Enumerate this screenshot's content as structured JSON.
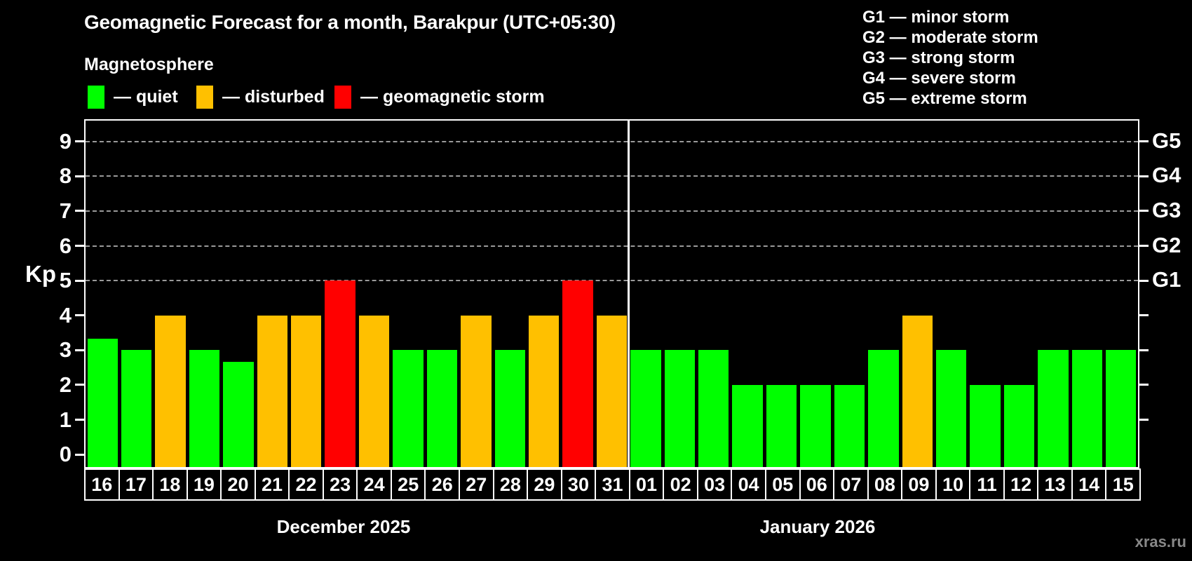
{
  "title": "Geomagnetic Forecast for a month, Barakpur (UTC+05:30)",
  "subtitle": "Magnetosphere",
  "watermark": "xras.ru",
  "colors": {
    "quiet": "#00ff00",
    "disturbed": "#ffc000",
    "storm": "#ff0000",
    "axis": "#ffffff",
    "grid": "#9a9a9a",
    "watermark": "#888888"
  },
  "legend": {
    "items": [
      {
        "label": "— quiet",
        "color": "quiet"
      },
      {
        "label": "— disturbed",
        "color": "disturbed"
      },
      {
        "label": "— geomagnetic storm",
        "color": "storm"
      }
    ]
  },
  "g_legend": [
    "G1 — minor storm",
    "G2 — moderate storm",
    "G3 — strong storm",
    "G4 — severe storm",
    "G5 — extreme storm"
  ],
  "chart_data": {
    "type": "bar",
    "ylabel": "Kp",
    "ylim": [
      0,
      9
    ],
    "yticks": [
      0,
      1,
      2,
      3,
      4,
      5,
      6,
      7,
      8,
      9
    ],
    "grid_levels": [
      5,
      6,
      7,
      8,
      9
    ],
    "right_axis": [
      {
        "kp": 5,
        "label": "G1"
      },
      {
        "kp": 6,
        "label": "G2"
      },
      {
        "kp": 7,
        "label": "G3"
      },
      {
        "kp": 8,
        "label": "G4"
      },
      {
        "kp": 9,
        "label": "G5"
      }
    ],
    "legend_position": "top",
    "grid": "dashed, levels 5-9 only",
    "months": [
      {
        "label": "December 2025",
        "days": [
          {
            "day": "16",
            "value": 3.33,
            "status": "quiet"
          },
          {
            "day": "17",
            "value": 3,
            "status": "quiet"
          },
          {
            "day": "18",
            "value": 4,
            "status": "disturbed"
          },
          {
            "day": "19",
            "value": 3,
            "status": "quiet"
          },
          {
            "day": "20",
            "value": 2.67,
            "status": "quiet"
          },
          {
            "day": "21",
            "value": 4,
            "status": "disturbed"
          },
          {
            "day": "22",
            "value": 4,
            "status": "disturbed"
          },
          {
            "day": "23",
            "value": 5,
            "status": "storm"
          },
          {
            "day": "24",
            "value": 4,
            "status": "disturbed"
          },
          {
            "day": "25",
            "value": 3,
            "status": "quiet"
          },
          {
            "day": "26",
            "value": 3,
            "status": "quiet"
          },
          {
            "day": "27",
            "value": 4,
            "status": "disturbed"
          },
          {
            "day": "28",
            "value": 3,
            "status": "quiet"
          },
          {
            "day": "29",
            "value": 4,
            "status": "disturbed"
          },
          {
            "day": "30",
            "value": 5,
            "status": "storm"
          },
          {
            "day": "31",
            "value": 4,
            "status": "disturbed"
          }
        ]
      },
      {
        "label": "January 2026",
        "days": [
          {
            "day": "01",
            "value": 3,
            "status": "quiet"
          },
          {
            "day": "02",
            "value": 3,
            "status": "quiet"
          },
          {
            "day": "03",
            "value": 3,
            "status": "quiet"
          },
          {
            "day": "04",
            "value": 2,
            "status": "quiet"
          },
          {
            "day": "05",
            "value": 2,
            "status": "quiet"
          },
          {
            "day": "06",
            "value": 2,
            "status": "quiet"
          },
          {
            "day": "07",
            "value": 2,
            "status": "quiet"
          },
          {
            "day": "08",
            "value": 3,
            "status": "quiet"
          },
          {
            "day": "09",
            "value": 4,
            "status": "disturbed"
          },
          {
            "day": "10",
            "value": 3,
            "status": "quiet"
          },
          {
            "day": "11",
            "value": 2,
            "status": "quiet"
          },
          {
            "day": "12",
            "value": 2,
            "status": "quiet"
          },
          {
            "day": "13",
            "value": 3,
            "status": "quiet"
          },
          {
            "day": "14",
            "value": 3,
            "status": "quiet"
          },
          {
            "day": "15",
            "value": 3,
            "status": "quiet"
          }
        ]
      }
    ]
  }
}
